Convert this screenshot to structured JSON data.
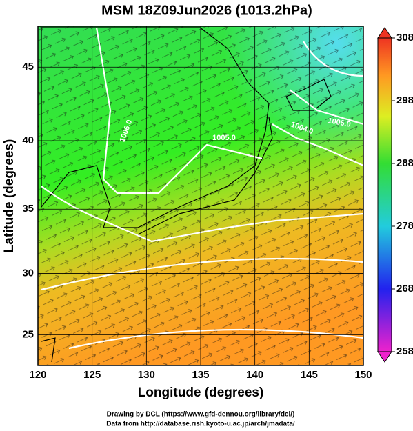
{
  "title": "MSM 18Z09Jun2026 (1013.2hPa)",
  "x_axis": {
    "label": "Longitude (degrees)",
    "lim": [
      120,
      150
    ],
    "ticks": [
      120,
      125,
      130,
      135,
      140,
      145,
      150
    ]
  },
  "y_axis": {
    "label": "Latitude  (degrees)",
    "lim": [
      22.4,
      47.6
    ],
    "ticks": [
      25,
      30,
      35,
      40,
      45
    ],
    "projection": "mercator"
  },
  "colorbar": {
    "lim": [
      258,
      308
    ],
    "ticks": [
      258,
      268,
      278,
      288,
      298,
      308
    ]
  },
  "contour_labels": [
    "1005.0",
    "1004.0",
    "1006.0",
    "1006.0"
  ],
  "footer": [
    "Drawing by DCL (https://www.gfd-dennou.org/library/dcl/)",
    "Data from http://database.rish.kyoto-u.ac.jp/arch/jmadata/"
  ]
}
